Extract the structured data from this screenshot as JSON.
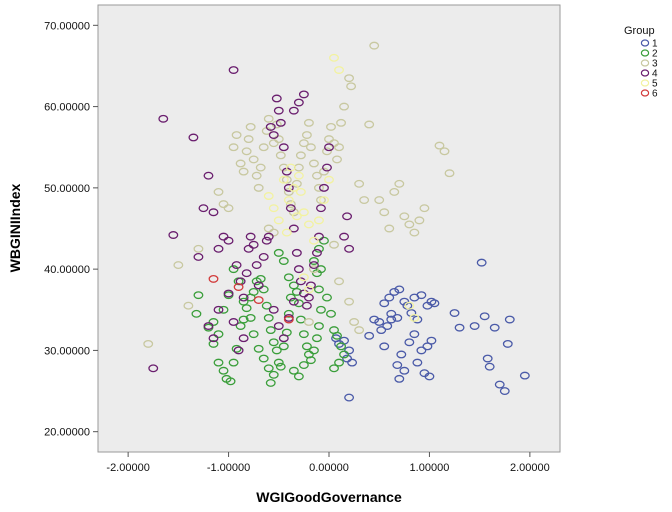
{
  "chart_data": {
    "type": "scatter",
    "title": "",
    "xlabel": "WGIGoodGovernance",
    "ylabel": "WBGINIIndex",
    "xlim": [
      -2.3,
      2.3
    ],
    "ylim": [
      17.5,
      72.5
    ],
    "xticks": [
      -2,
      -1,
      0,
      1,
      2
    ],
    "xtick_labels": [
      "-2.00000",
      "-1.00000",
      "0.00000",
      "1.00000",
      "2.00000"
    ],
    "yticks": [
      20,
      30,
      40,
      50,
      60,
      70
    ],
    "ytick_labels": [
      "20.00000",
      "30.00000",
      "40.00000",
      "50.00000",
      "60.00000",
      "70.00000"
    ],
    "grid": false,
    "plot_background": "#ececec",
    "marker": "open-circle",
    "legend": {
      "title": "Group",
      "position": "top-right"
    },
    "series": [
      {
        "name": "1",
        "color": "#4a5aa8",
        "points": [
          [
            0.07,
            31.5
          ],
          [
            0.1,
            30.8
          ],
          [
            0.15,
            31.2
          ],
          [
            0.2,
            30.0
          ],
          [
            0.18,
            29.0
          ],
          [
            0.23,
            28.5
          ],
          [
            0.2,
            24.2
          ],
          [
            0.4,
            31.8
          ],
          [
            0.5,
            33.5
          ],
          [
            0.55,
            35.8
          ],
          [
            0.6,
            36.5
          ],
          [
            0.65,
            37.2
          ],
          [
            0.7,
            37.5
          ],
          [
            0.75,
            36.0
          ],
          [
            0.62,
            34.5
          ],
          [
            0.68,
            34.0
          ],
          [
            0.58,
            33.0
          ],
          [
            0.52,
            32.5
          ],
          [
            0.62,
            33.8
          ],
          [
            0.78,
            35.5
          ],
          [
            0.82,
            34.6
          ],
          [
            0.88,
            33.8
          ],
          [
            0.85,
            32.0
          ],
          [
            0.8,
            31.0
          ],
          [
            0.72,
            29.5
          ],
          [
            0.68,
            28.2
          ],
          [
            0.75,
            27.5
          ],
          [
            0.7,
            26.5
          ],
          [
            0.88,
            28.5
          ],
          [
            0.95,
            27.2
          ],
          [
            1.0,
            26.8
          ],
          [
            0.92,
            30.0
          ],
          [
            0.98,
            30.5
          ],
          [
            1.02,
            31.2
          ],
          [
            0.85,
            36.5
          ],
          [
            0.92,
            36.8
          ],
          [
            0.98,
            35.5
          ],
          [
            1.02,
            36.0
          ],
          [
            1.05,
            35.8
          ],
          [
            1.25,
            34.6
          ],
          [
            1.3,
            32.8
          ],
          [
            1.45,
            33.0
          ],
          [
            1.52,
            40.8
          ],
          [
            1.55,
            34.2
          ],
          [
            1.58,
            29.0
          ],
          [
            1.6,
            28.0
          ],
          [
            1.65,
            32.8
          ],
          [
            1.7,
            25.8
          ],
          [
            1.75,
            25.0
          ],
          [
            1.78,
            30.8
          ],
          [
            1.8,
            33.8
          ],
          [
            1.95,
            26.9
          ],
          [
            0.55,
            30.5
          ],
          [
            0.45,
            33.8
          ]
        ]
      },
      {
        "name": "2",
        "color": "#3a9e3a",
        "points": [
          [
            -1.3,
            36.8
          ],
          [
            -1.32,
            34.5
          ],
          [
            -1.2,
            32.8
          ],
          [
            -1.15,
            33.5
          ],
          [
            -1.1,
            32.0
          ],
          [
            -1.15,
            30.8
          ],
          [
            -1.1,
            28.5
          ],
          [
            -1.05,
            27.5
          ],
          [
            -1.02,
            26.5
          ],
          [
            -0.98,
            26.2
          ],
          [
            -0.95,
            28.5
          ],
          [
            -0.92,
            30.2
          ],
          [
            -0.88,
            33.0
          ],
          [
            -0.85,
            33.8
          ],
          [
            -0.82,
            35.2
          ],
          [
            -0.78,
            36.5
          ],
          [
            -0.75,
            37.2
          ],
          [
            -0.72,
            38.5
          ],
          [
            -0.68,
            38.8
          ],
          [
            -0.65,
            37.5
          ],
          [
            -0.62,
            35.5
          ],
          [
            -0.6,
            34.0
          ],
          [
            -0.58,
            32.5
          ],
          [
            -0.55,
            31.0
          ],
          [
            -0.52,
            30.0
          ],
          [
            -0.5,
            28.5
          ],
          [
            -0.48,
            28.0
          ],
          [
            -0.45,
            30.5
          ],
          [
            -0.42,
            32.2
          ],
          [
            -0.4,
            34.5
          ],
          [
            -0.38,
            36.5
          ],
          [
            -0.35,
            38.0
          ],
          [
            -0.32,
            37.2
          ],
          [
            -0.3,
            35.8
          ],
          [
            -0.28,
            33.8
          ],
          [
            -0.25,
            32.0
          ],
          [
            -0.22,
            30.5
          ],
          [
            -0.2,
            29.5
          ],
          [
            -0.18,
            28.8
          ],
          [
            -0.15,
            30.0
          ],
          [
            -0.12,
            31.5
          ],
          [
            -0.1,
            33.0
          ],
          [
            -0.08,
            35.0
          ],
          [
            -0.1,
            37.5
          ],
          [
            -0.12,
            39.5
          ],
          [
            -0.15,
            41.0
          ],
          [
            -0.1,
            42.5
          ],
          [
            -0.05,
            43.5
          ],
          [
            -0.08,
            40.0
          ],
          [
            -0.02,
            36.5
          ],
          [
            0.02,
            34.5
          ],
          [
            0.05,
            32.5
          ],
          [
            0.08,
            31.8
          ],
          [
            0.12,
            30.5
          ],
          [
            0.15,
            29.5
          ],
          [
            -0.55,
            27.0
          ],
          [
            -0.58,
            26.0
          ],
          [
            -0.6,
            27.8
          ],
          [
            -0.65,
            29.0
          ],
          [
            -0.7,
            30.2
          ],
          [
            -0.75,
            32.0
          ],
          [
            -0.78,
            34.0
          ],
          [
            -0.85,
            36.0
          ],
          [
            -0.9,
            38.5
          ],
          [
            -0.95,
            40.0
          ],
          [
            -1.0,
            36.8
          ],
          [
            -1.05,
            35.0
          ],
          [
            -0.35,
            27.5
          ],
          [
            -0.3,
            26.8
          ],
          [
            -0.25,
            28.2
          ],
          [
            -0.4,
            39.0
          ],
          [
            -0.45,
            41.0
          ],
          [
            -0.5,
            42.0
          ],
          [
            0.1,
            28.5
          ],
          [
            0.05,
            27.8
          ]
        ]
      },
      {
        "name": "3",
        "color": "#c8c8a0",
        "points": [
          [
            -1.8,
            30.8
          ],
          [
            -1.5,
            40.5
          ],
          [
            -1.4,
            35.5
          ],
          [
            -1.3,
            42.5
          ],
          [
            -1.1,
            49.5
          ],
          [
            -1.05,
            48.0
          ],
          [
            -1.0,
            47.5
          ],
          [
            -0.95,
            55.0
          ],
          [
            -0.92,
            56.5
          ],
          [
            -0.88,
            53.0
          ],
          [
            -0.85,
            52.0
          ],
          [
            -0.82,
            54.5
          ],
          [
            -0.8,
            56.0
          ],
          [
            -0.78,
            57.5
          ],
          [
            -0.75,
            53.5
          ],
          [
            -0.72,
            51.5
          ],
          [
            -0.7,
            50.0
          ],
          [
            -0.68,
            52.5
          ],
          [
            -0.65,
            55.0
          ],
          [
            -0.62,
            57.0
          ],
          [
            -0.6,
            58.5
          ],
          [
            -0.55,
            55.5
          ],
          [
            -0.52,
            57.8
          ],
          [
            -0.5,
            56.0
          ],
          [
            -0.48,
            54.0
          ],
          [
            -0.45,
            52.5
          ],
          [
            -0.42,
            51.0
          ],
          [
            -0.4,
            49.5
          ],
          [
            -0.38,
            48.0
          ],
          [
            -0.35,
            47.0
          ],
          [
            -0.32,
            50.5
          ],
          [
            -0.3,
            52.5
          ],
          [
            -0.28,
            54.0
          ],
          [
            -0.25,
            55.5
          ],
          [
            -0.22,
            56.5
          ],
          [
            -0.2,
            58.0
          ],
          [
            -0.18,
            55.0
          ],
          [
            -0.15,
            53.0
          ],
          [
            -0.12,
            51.5
          ],
          [
            -0.1,
            50.0
          ],
          [
            -0.08,
            48.5
          ],
          [
            -0.05,
            52.0
          ],
          [
            -0.02,
            54.5
          ],
          [
            0.0,
            56.0
          ],
          [
            0.02,
            57.5
          ],
          [
            0.05,
            55.5
          ],
          [
            0.08,
            53.5
          ],
          [
            0.1,
            55.0
          ],
          [
            0.12,
            58.0
          ],
          [
            0.15,
            60.0
          ],
          [
            0.2,
            63.5
          ],
          [
            0.22,
            62.5
          ],
          [
            0.3,
            50.5
          ],
          [
            0.35,
            48.5
          ],
          [
            0.4,
            57.8
          ],
          [
            0.45,
            67.5
          ],
          [
            0.5,
            48.5
          ],
          [
            0.55,
            47.0
          ],
          [
            0.6,
            45.0
          ],
          [
            0.65,
            49.5
          ],
          [
            0.7,
            50.5
          ],
          [
            0.75,
            46.5
          ],
          [
            0.8,
            45.5
          ],
          [
            0.85,
            44.5
          ],
          [
            0.9,
            46.0
          ],
          [
            0.95,
            47.5
          ],
          [
            1.1,
            55.2
          ],
          [
            1.15,
            54.5
          ],
          [
            1.2,
            51.8
          ],
          [
            0.05,
            43.0
          ],
          [
            0.1,
            38.5
          ],
          [
            0.2,
            36.0
          ],
          [
            0.25,
            33.5
          ],
          [
            0.3,
            32.5
          ],
          [
            -0.2,
            33.5
          ],
          [
            -0.15,
            40.0
          ],
          [
            -0.55,
            44.5
          ],
          [
            -0.6,
            45.0
          ]
        ]
      },
      {
        "name": "4",
        "color": "#6a1e6e",
        "points": [
          [
            -1.75,
            27.8
          ],
          [
            -1.65,
            58.5
          ],
          [
            -1.55,
            44.2
          ],
          [
            -1.35,
            56.2
          ],
          [
            -1.3,
            41.5
          ],
          [
            -1.25,
            47.5
          ],
          [
            -1.2,
            51.5
          ],
          [
            -1.15,
            47.0
          ],
          [
            -1.1,
            42.5
          ],
          [
            -1.05,
            44.0
          ],
          [
            -1.0,
            43.5
          ],
          [
            -0.95,
            64.5
          ],
          [
            -0.92,
            40.5
          ],
          [
            -0.88,
            38.5
          ],
          [
            -0.85,
            36.5
          ],
          [
            -0.82,
            39.5
          ],
          [
            -0.8,
            42.5
          ],
          [
            -0.78,
            44.0
          ],
          [
            -0.75,
            43.0
          ],
          [
            -0.72,
            40.5
          ],
          [
            -0.7,
            38.0
          ],
          [
            -0.65,
            41.5
          ],
          [
            -0.62,
            43.5
          ],
          [
            -0.6,
            44.0
          ],
          [
            -0.58,
            57.5
          ],
          [
            -0.55,
            56.5
          ],
          [
            -0.52,
            61.0
          ],
          [
            -0.5,
            59.5
          ],
          [
            -0.48,
            58.0
          ],
          [
            -0.45,
            55.0
          ],
          [
            -0.42,
            52.0
          ],
          [
            -0.4,
            50.0
          ],
          [
            -0.38,
            47.5
          ],
          [
            -0.35,
            45.0
          ],
          [
            -0.32,
            42.0
          ],
          [
            -0.3,
            40.0
          ],
          [
            -0.28,
            38.5
          ],
          [
            -0.25,
            37.0
          ],
          [
            -0.22,
            35.5
          ],
          [
            -0.2,
            36.5
          ],
          [
            -0.18,
            38.0
          ],
          [
            -0.15,
            40.5
          ],
          [
            -0.12,
            42.0
          ],
          [
            -0.1,
            44.0
          ],
          [
            -0.08,
            47.5
          ],
          [
            -0.05,
            50.0
          ],
          [
            -0.02,
            52.5
          ],
          [
            0.0,
            55.0
          ],
          [
            -0.3,
            60.5
          ],
          [
            -0.25,
            61.5
          ],
          [
            -0.35,
            59.5
          ],
          [
            -1.15,
            31.5
          ],
          [
            -1.2,
            33.0
          ],
          [
            -1.1,
            35.0
          ],
          [
            -1.0,
            37.0
          ],
          [
            -0.95,
            33.5
          ],
          [
            -0.9,
            30.0
          ],
          [
            -0.85,
            31.5
          ],
          [
            -0.55,
            35.0
          ],
          [
            -0.5,
            33.0
          ],
          [
            -0.45,
            31.5
          ],
          [
            -0.4,
            34.0
          ],
          [
            -0.35,
            36.0
          ],
          [
            0.15,
            44.0
          ],
          [
            0.2,
            42.5
          ],
          [
            0.18,
            46.5
          ]
        ]
      },
      {
        "name": "5",
        "color": "#f2f2a0",
        "points": [
          [
            -0.45,
            51.0
          ],
          [
            -0.4,
            48.5
          ],
          [
            -0.38,
            52.5
          ],
          [
            -0.35,
            50.0
          ],
          [
            -0.3,
            51.5
          ],
          [
            -0.28,
            49.5
          ],
          [
            -0.25,
            47.0
          ],
          [
            -0.2,
            45.5
          ],
          [
            -0.15,
            43.5
          ],
          [
            -0.1,
            46.0
          ],
          [
            -0.05,
            48.5
          ],
          [
            0.0,
            51.0
          ],
          [
            0.05,
            66.0
          ],
          [
            0.1,
            64.5
          ],
          [
            -0.6,
            49.0
          ],
          [
            -0.55,
            47.5
          ],
          [
            -0.5,
            46.0
          ],
          [
            -0.25,
            39.0
          ],
          [
            -0.2,
            37.5
          ],
          [
            0.8,
            35.5
          ],
          [
            0.85,
            34.0
          ],
          [
            -0.42,
            44.5
          ],
          [
            -0.32,
            46.5
          ]
        ]
      },
      {
        "name": "6",
        "color": "#d23c3c",
        "points": [
          [
            -1.15,
            38.8
          ],
          [
            -0.9,
            37.8
          ],
          [
            -0.7,
            36.2
          ],
          [
            -0.4,
            33.8
          ]
        ]
      }
    ]
  }
}
